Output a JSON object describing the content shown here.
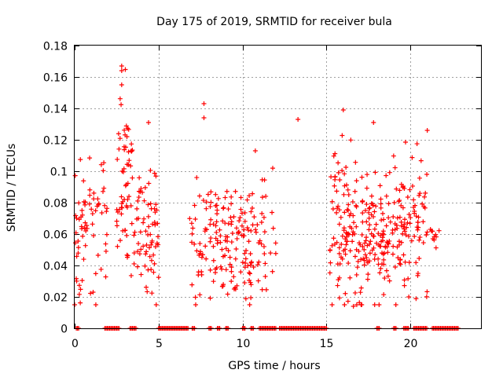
{
  "chart_data": {
    "type": "scatter",
    "title": "Day 175 of 2019, SRMTID for receiver bula",
    "xlabel": "GPS time / hours",
    "ylabel": "SRMTID / TECUs",
    "xlim": [
      0,
      24.2
    ],
    "ylim": [
      0,
      0.18
    ],
    "x_ticks": [
      0,
      5,
      10,
      15,
      20
    ],
    "x_tick_labels": [
      "0",
      "5",
      "10",
      "15",
      "20"
    ],
    "y_ticks": [
      0,
      0.02,
      0.04,
      0.06,
      0.08,
      0.1,
      0.12,
      0.14,
      0.16,
      0.18
    ],
    "y_tick_labels": [
      "0",
      "0.02",
      "0.04",
      "0.06",
      "0.08",
      "0.1",
      "0.12",
      "0.14",
      "0.16",
      "0.18"
    ],
    "grid": true,
    "marker": "plus",
    "color": "#ff0000",
    "clusters": [
      {
        "x_range": [
          0.0,
          2.0
        ],
        "y_mean": 0.062,
        "y_spread": 0.022,
        "y_max": 0.116,
        "count": 70
      },
      {
        "x_range": [
          2.5,
          3.5
        ],
        "y_mean": 0.09,
        "y_spread": 0.028,
        "y_max": 0.167,
        "count": 60
      },
      {
        "x_range": [
          3.5,
          5.0
        ],
        "y_mean": 0.065,
        "y_spread": 0.02,
        "y_max": 0.131,
        "count": 70
      },
      {
        "x_range": [
          6.8,
          8.5
        ],
        "y_mean": 0.058,
        "y_spread": 0.02,
        "y_max": 0.143,
        "count": 60
      },
      {
        "x_range": [
          8.5,
          10.5
        ],
        "y_mean": 0.055,
        "y_spread": 0.017,
        "y_max": 0.104,
        "count": 90
      },
      {
        "x_range": [
          10.5,
          12.0
        ],
        "y_mean": 0.06,
        "y_spread": 0.02,
        "y_max": 0.113,
        "count": 40
      },
      {
        "x_range": [
          15.2,
          17.0
        ],
        "y_mean": 0.065,
        "y_spread": 0.025,
        "y_max": 0.139,
        "count": 100
      },
      {
        "x_range": [
          17.0,
          18.8
        ],
        "y_mean": 0.06,
        "y_spread": 0.022,
        "y_max": 0.131,
        "count": 110
      },
      {
        "x_range": [
          18.8,
          21.0
        ],
        "y_mean": 0.065,
        "y_spread": 0.022,
        "y_max": 0.126,
        "count": 100
      },
      {
        "x_range": [
          21.0,
          21.8
        ],
        "y_mean": 0.055,
        "y_spread": 0.012,
        "y_max": 0.063,
        "count": 10
      }
    ],
    "outliers": [
      {
        "x": 13.3,
        "y": 0.133
      },
      {
        "x": 2.8,
        "y": 0.167
      },
      {
        "x": 2.8,
        "y": 0.164
      },
      {
        "x": 2.8,
        "y": 0.155
      },
      {
        "x": 7.7,
        "y": 0.143
      },
      {
        "x": 7.7,
        "y": 0.134
      },
      {
        "x": 16.0,
        "y": 0.139
      },
      {
        "x": 17.8,
        "y": 0.131
      },
      {
        "x": 21.0,
        "y": 0.126
      },
      {
        "x": 4.4,
        "y": 0.131
      },
      {
        "x": 1.1,
        "y": 0.023
      },
      {
        "x": 16.6,
        "y": 0.014
      },
      {
        "x": 16.8,
        "y": 0.015
      },
      {
        "x": 19.9,
        "y": 0.02
      },
      {
        "x": 9.5,
        "y": 0.025
      }
    ],
    "zero_segments": [
      [
        0.1,
        0.3
      ],
      [
        1.8,
        2.7
      ],
      [
        3.3,
        3.7
      ],
      [
        5.0,
        6.8
      ],
      [
        7.0,
        7.2
      ],
      [
        8.0,
        8.2
      ],
      [
        8.5,
        8.7
      ],
      [
        9.0,
        9.2
      ],
      [
        10.0,
        10.2
      ],
      [
        10.5,
        10.7
      ],
      [
        11.0,
        12.0
      ],
      [
        12.2,
        15.0
      ],
      [
        18.0,
        18.2
      ],
      [
        19.0,
        19.2
      ],
      [
        19.6,
        19.9
      ],
      [
        20.2,
        21.0
      ],
      [
        21.3,
        22.9
      ]
    ]
  }
}
